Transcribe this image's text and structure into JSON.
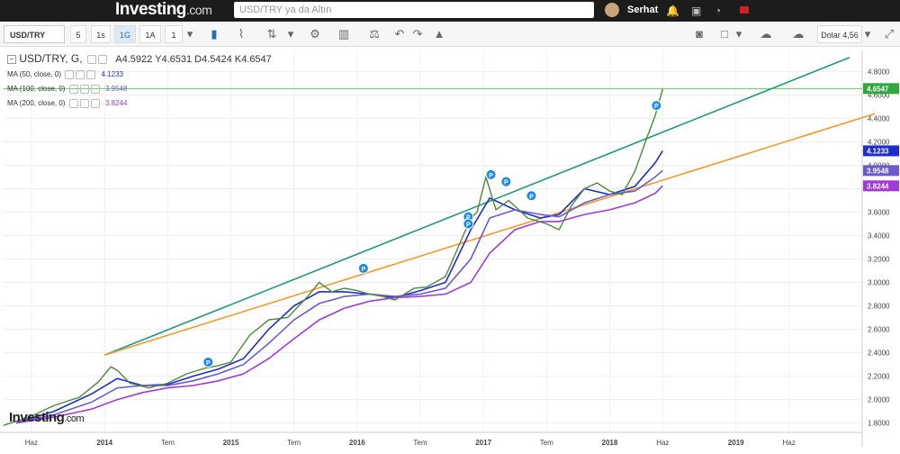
{
  "topbar": {
    "logo": "Investing",
    "logo_suffix": ".com",
    "search_placeholder": "USD/TRY ya da Altın",
    "username": "Serhat"
  },
  "toolbar": {
    "symbol": "USD/TRY",
    "intervals": [
      "5",
      "1s",
      "1G",
      "1A",
      "1"
    ],
    "active_interval": "1G",
    "currency_label": "Dolar 4,56"
  },
  "legend": {
    "title": "USD/TRY, G,",
    "ohlc": "A4.5922  Y4.6531  D4.5424  K4.6547",
    "ma50": {
      "label": "MA (50, close, 0)",
      "value": "4.1233",
      "color": "#1f2ccf"
    },
    "ma100": {
      "label": "MA (100, close, 0)",
      "value": "3.9548",
      "color": "#6a5acd"
    },
    "ma200": {
      "label": "MA (200, close, 0)",
      "value": "3.8244",
      "color": "#a23ad9"
    }
  },
  "watermark": {
    "text": "Investing",
    "suffix": ".com"
  },
  "chart_data": {
    "type": "line",
    "y_ticks": [
      "4.8000",
      "4.6000",
      "4.4000",
      "4.2000",
      "4.0000",
      "3.8000",
      "3.6000",
      "3.4000",
      "3.2000",
      "3.0000",
      "2.8000",
      "2.6000",
      "2.4000",
      "2.2000",
      "2.0000",
      "1.8000"
    ],
    "ylim": [
      1.72,
      4.98
    ],
    "x_ticks": [
      "Haz",
      "2014",
      "Tem",
      "2015",
      "Tem",
      "2016",
      "Tem",
      "2017",
      "Tem",
      "2018",
      "Haz",
      "2019",
      "Haz"
    ],
    "x_tick_times": [
      2013.42,
      2014.0,
      2014.5,
      2015.0,
      2015.5,
      2016.0,
      2016.5,
      2017.0,
      2017.5,
      2018.0,
      2018.42,
      2019.0,
      2019.42
    ],
    "xlim": [
      2013.2,
      2020.0
    ],
    "price_labels": [
      {
        "value": "4.6547",
        "color": "#2fa83d"
      },
      {
        "value": "4.1233",
        "color": "#1f2ccf"
      },
      {
        "value": "3.9548",
        "color": "#6a5acd"
      },
      {
        "value": "3.8244",
        "color": "#a23ad9"
      }
    ],
    "price_series": {
      "name": "USD/TRY",
      "color": "#4a8a3a",
      "t": [
        2013.2,
        2013.4,
        2013.6,
        2013.8,
        2013.95,
        2014.05,
        2014.1,
        2014.2,
        2014.35,
        2014.5,
        2014.65,
        2014.8,
        2014.9,
        2015.0,
        2015.15,
        2015.3,
        2015.45,
        2015.6,
        2015.7,
        2015.8,
        2015.9,
        2016.0,
        2016.1,
        2016.2,
        2016.3,
        2016.45,
        2016.55,
        2016.7,
        2016.8,
        2016.9,
        2016.95,
        2017.02,
        2017.1,
        2017.2,
        2017.35,
        2017.5,
        2017.6,
        2017.7,
        2017.8,
        2017.9,
        2018.0,
        2018.1,
        2018.2,
        2018.3,
        2018.36,
        2018.42
      ],
      "values": [
        1.78,
        1.85,
        1.95,
        2.02,
        2.15,
        2.28,
        2.25,
        2.14,
        2.1,
        2.14,
        2.22,
        2.27,
        2.29,
        2.32,
        2.55,
        2.68,
        2.7,
        2.87,
        3.0,
        2.92,
        2.95,
        2.93,
        2.9,
        2.88,
        2.85,
        2.95,
        2.96,
        3.05,
        3.3,
        3.55,
        3.6,
        3.9,
        3.62,
        3.7,
        3.55,
        3.5,
        3.45,
        3.66,
        3.8,
        3.85,
        3.78,
        3.75,
        3.95,
        4.25,
        4.42,
        4.65
      ]
    },
    "series": [
      {
        "name": "MA (50, close, 0)",
        "color": "#1f2ccf",
        "t": [
          2013.3,
          2013.6,
          2013.9,
          2014.1,
          2014.3,
          2014.5,
          2014.7,
          2014.9,
          2015.1,
          2015.3,
          2015.5,
          2015.7,
          2015.9,
          2016.1,
          2016.3,
          2016.5,
          2016.7,
          2016.9,
          2017.05,
          2017.25,
          2017.45,
          2017.6,
          2017.8,
          2018.0,
          2018.2,
          2018.36,
          2018.42
        ],
        "values": [
          1.8,
          1.9,
          2.05,
          2.18,
          2.12,
          2.13,
          2.2,
          2.26,
          2.35,
          2.6,
          2.8,
          2.92,
          2.92,
          2.9,
          2.87,
          2.93,
          3.0,
          3.45,
          3.72,
          3.62,
          3.55,
          3.58,
          3.8,
          3.75,
          3.82,
          4.02,
          4.1233
        ]
      },
      {
        "name": "MA (100, close, 0)",
        "color": "#6a5acd",
        "t": [
          2013.3,
          2013.6,
          2013.9,
          2014.1,
          2014.3,
          2014.5,
          2014.7,
          2014.9,
          2015.1,
          2015.3,
          2015.5,
          2015.7,
          2015.9,
          2016.1,
          2016.3,
          2016.5,
          2016.7,
          2016.9,
          2017.05,
          2017.25,
          2017.45,
          2017.6,
          2017.8,
          2018.0,
          2018.2,
          2018.36,
          2018.42
        ],
        "values": [
          1.8,
          1.87,
          1.98,
          2.1,
          2.12,
          2.12,
          2.16,
          2.22,
          2.3,
          2.48,
          2.68,
          2.82,
          2.88,
          2.9,
          2.88,
          2.9,
          2.95,
          3.2,
          3.55,
          3.62,
          3.58,
          3.56,
          3.68,
          3.75,
          3.78,
          3.9,
          3.9548
        ]
      },
      {
        "name": "MA (200, close, 0)",
        "color": "#a23ad9",
        "t": [
          2013.3,
          2013.6,
          2013.9,
          2014.1,
          2014.3,
          2014.5,
          2014.7,
          2014.9,
          2015.1,
          2015.3,
          2015.5,
          2015.7,
          2015.9,
          2016.1,
          2016.3,
          2016.5,
          2016.7,
          2016.9,
          2017.05,
          2017.25,
          2017.45,
          2017.6,
          2017.8,
          2018.0,
          2018.2,
          2018.36,
          2018.42
        ],
        "values": [
          1.8,
          1.85,
          1.92,
          2.0,
          2.06,
          2.1,
          2.12,
          2.16,
          2.22,
          2.35,
          2.52,
          2.68,
          2.78,
          2.84,
          2.87,
          2.88,
          2.9,
          3.0,
          3.25,
          3.45,
          3.52,
          3.52,
          3.58,
          3.62,
          3.68,
          3.76,
          3.8244
        ]
      }
    ],
    "trendlines": [
      {
        "color": "#1f9a7a",
        "t": [
          2014.0,
          2019.9
        ],
        "values": [
          2.38,
          4.92
        ]
      },
      {
        "color": "#f39a2b",
        "t": [
          2014.0,
          2020.1
        ],
        "values": [
          2.38,
          4.44
        ]
      }
    ],
    "horizontal_line": {
      "value": 4.6547,
      "color": "#49c24d"
    },
    "markers": [
      {
        "t": 2014.82,
        "value": 2.32,
        "label": "P"
      },
      {
        "t": 2016.05,
        "value": 3.12,
        "label": "P"
      },
      {
        "t": 2016.88,
        "value": 3.56,
        "label": "P"
      },
      {
        "t": 2016.88,
        "value": 3.5,
        "label": "P"
      },
      {
        "t": 2017.06,
        "value": 3.92,
        "label": "P"
      },
      {
        "t": 2017.18,
        "value": 3.86,
        "label": "P"
      },
      {
        "t": 2017.38,
        "value": 3.74,
        "label": "P"
      },
      {
        "t": 2018.37,
        "value": 4.51,
        "label": "P"
      }
    ]
  }
}
